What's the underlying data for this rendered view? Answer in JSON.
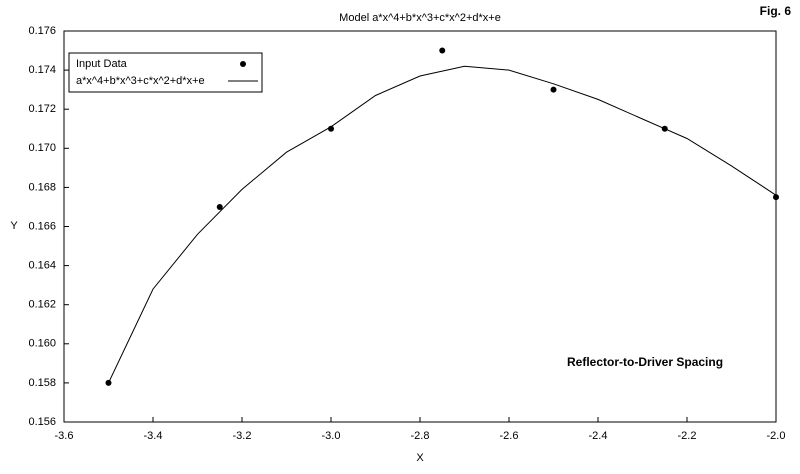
{
  "chart_data": {
    "type": "scatter",
    "title": "Model a*x^4+b*x^3+c*x^2+d*x+e",
    "figure_label": "Fig. 6",
    "annotation": "Reflector-to-Driver Spacing",
    "x_label": "X",
    "y_label": "Y",
    "xlim": [
      -3.6,
      -2.0
    ],
    "xticks": [
      -3.6,
      -3.4,
      -3.2,
      {
        "value": -3.0,
        "label": "-3.0"
      },
      -2.8,
      -2.6,
      -2.4,
      -2.2,
      {
        "value": -2.0,
        "label": "-2.0"
      }
    ],
    "ylim": [
      0.156,
      0.176
    ],
    "yticks": [
      0.156,
      0.158,
      {
        "value": 0.16,
        "label": "0.160"
      },
      0.162,
      0.164,
      0.166,
      0.168,
      {
        "value": 0.17,
        "label": "0.170"
      },
      0.172,
      0.174,
      0.176
    ],
    "legend": "top-left",
    "series": [
      {
        "name": "Input Data",
        "color": "#000000",
        "mode": "markers",
        "x": [
          -3.5,
          -3.25,
          -3.0,
          -2.75,
          -2.5,
          -2.25,
          -2.0
        ],
        "values": [
          0.158,
          0.167,
          0.171,
          0.175,
          0.173,
          0.171,
          0.1675
        ]
      },
      {
        "name": "a*x^4+b*x^3+c*x^2+d*x+e",
        "color": "#000000",
        "mode": "line",
        "x": [
          -3.5,
          -3.4,
          -3.3,
          -3.2,
          -3.1,
          -3.0,
          -2.9,
          -2.8,
          -2.7,
          -2.6,
          -2.5,
          -2.4,
          -2.3,
          -2.2,
          -2.1,
          -2.0
        ],
        "values": [
          0.158,
          0.1628,
          0.1656,
          0.1679,
          0.1698,
          0.1711,
          0.1727,
          0.1737,
          0.1742,
          0.174,
          0.1733,
          0.1725,
          0.1715,
          0.1705,
          0.1691,
          0.1676
        ]
      }
    ]
  }
}
